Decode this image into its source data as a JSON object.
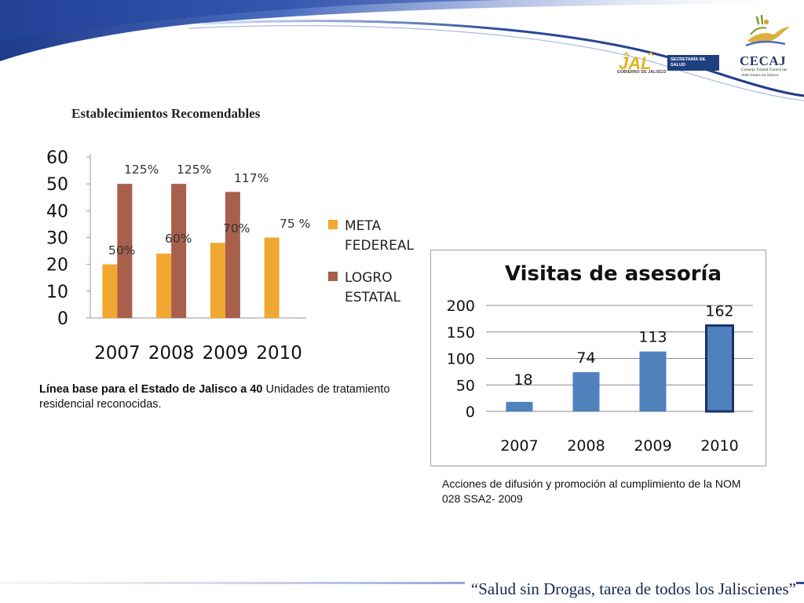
{
  "header": {
    "jal_logo_text": "JAL",
    "jal_logo_caption": "GOBIERNO DE JALISCO",
    "jal_logo_box": "SECRETARÍA DE SALUD",
    "cecaj_logo_text": "CECAJ",
    "cecaj_logo_subtitle": "Consejo Estatal Contra las Adicciones en Jalisco"
  },
  "left_panel": {
    "title": "Establecimientos Recomendables",
    "note_bold": "Línea base para el Estado de Jalisco a 40",
    "note_regular": " Unidades de tratamiento residencial reconocidas."
  },
  "right_panel": {
    "note": "Acciones de difusión y promoción al cumplimiento de la NOM 028 SSA2- 2009"
  },
  "footer": {
    "slogan": "“Salud sin Drogas, tarea de todos los Jaliscienes”"
  },
  "colors": {
    "meta": "#f0a830",
    "logro": "#a8604c",
    "visitas": "#4f81bd",
    "title_blue": "#1b2750"
  },
  "chart_data": [
    {
      "type": "bar",
      "title": "",
      "categories": [
        "2007",
        "2008",
        "2009",
        "2010"
      ],
      "series": [
        {
          "name": "META FEDEREAL",
          "values": [
            20,
            24,
            28,
            30
          ],
          "labels": [
            "50%",
            "60%",
            "70%",
            "75 %"
          ]
        },
        {
          "name": "LOGRO ESTATAL",
          "values": [
            50,
            50,
            47,
            null
          ],
          "labels": [
            "125%",
            "125%",
            "117%",
            ""
          ]
        }
      ],
      "yticks": [
        "0",
        "10",
        "20",
        "30",
        "40",
        "50",
        "60"
      ],
      "ylim": [
        0,
        60
      ],
      "grid": false,
      "legend": "right"
    },
    {
      "type": "bar",
      "title": "Visitas de asesoría",
      "categories": [
        "2007",
        "2008",
        "2009",
        "2010"
      ],
      "values": [
        18,
        74,
        113,
        162
      ],
      "data_labels": [
        "18",
        "74",
        "113",
        "162"
      ],
      "yticks": [
        "0",
        "50",
        "100",
        "150",
        "200"
      ],
      "ylim": [
        0,
        200
      ],
      "grid": true,
      "legend": "none"
    }
  ]
}
